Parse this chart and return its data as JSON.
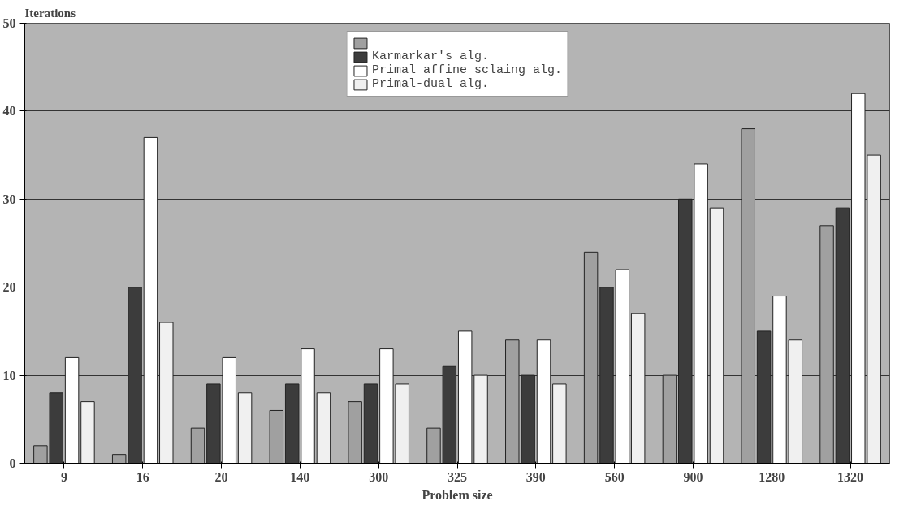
{
  "chart_data": {
    "type": "bar",
    "xlabel": "Problem size",
    "ylabel": "Iterations",
    "categories": [
      "9",
      "16",
      "20",
      "140",
      "300",
      "325",
      "390",
      "560",
      "900",
      "1280",
      "1320"
    ],
    "series": [
      {
        "color": "#a0a0a0",
        "values": [
          2,
          1,
          4,
          6,
          7,
          4,
          14,
          24,
          10,
          38,
          27
        ]
      },
      {
        "name": "Karmarkar's alg.",
        "color": "#3c3c3c",
        "values": [
          8,
          20,
          9,
          9,
          9,
          11,
          10,
          20,
          30,
          15,
          29
        ]
      },
      {
        "name": "Primal affine sclaing alg.",
        "color": "#ffffff",
        "values": [
          12,
          37,
          12,
          13,
          13,
          15,
          14,
          22,
          34,
          19,
          42
        ]
      },
      {
        "name": "Primal-dual alg.",
        "color": "#f0f0f0",
        "values": [
          7,
          16,
          8,
          8,
          9,
          10,
          9,
          17,
          29,
          14,
          35
        ]
      }
    ],
    "ylim": [
      0,
      50
    ],
    "yticks": [
      0,
      10,
      20,
      30,
      40,
      50
    ],
    "grid": "y",
    "legend": "top"
  }
}
